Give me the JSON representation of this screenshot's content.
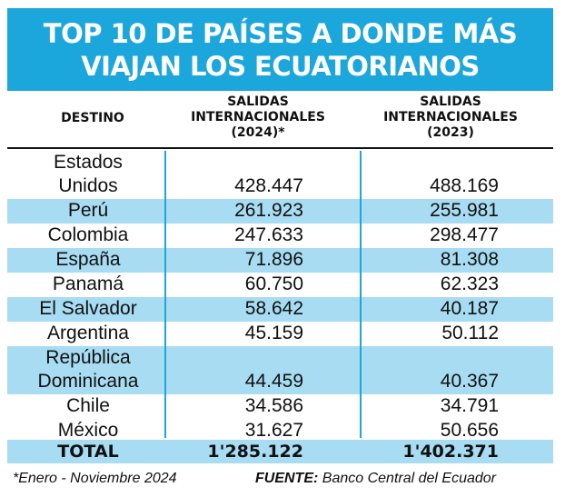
{
  "title": {
    "line1": "TOP 10 DE PAÍSES A DONDE MÁS",
    "line2": "VIAJAN LOS ECUATORIANOS"
  },
  "headers": {
    "destino": "DESTINO",
    "col2024": [
      "SALIDAS",
      "INTERNACIONALES",
      "(2024)*"
    ],
    "col2023": [
      "SALIDAS",
      "INTERNACIONALES",
      "(2023)"
    ]
  },
  "rows": [
    {
      "destino": [
        "Estados",
        "Unidos"
      ],
      "v2024": "428.447",
      "v2023": "488.169",
      "shaded": false
    },
    {
      "destino": [
        "Perú"
      ],
      "v2024": "261.923",
      "v2023": "255.981",
      "shaded": true
    },
    {
      "destino": [
        "Colombia"
      ],
      "v2024": "247.633",
      "v2023": "298.477",
      "shaded": false
    },
    {
      "destino": [
        "España"
      ],
      "v2024": "71.896",
      "v2023": "81.308",
      "shaded": true
    },
    {
      "destino": [
        "Panamá"
      ],
      "v2024": "60.750",
      "v2023": "62.323",
      "shaded": false
    },
    {
      "destino": [
        "El Salvador"
      ],
      "v2024": "58.642",
      "v2023": "40.187",
      "shaded": true
    },
    {
      "destino": [
        "Argentina"
      ],
      "v2024": "45.159",
      "v2023": "50.112",
      "shaded": false
    },
    {
      "destino": [
        "República",
        "Dominicana"
      ],
      "v2024": "44.459",
      "v2023": "40.367",
      "shaded": true
    },
    {
      "destino": [
        "Chile"
      ],
      "v2024": "34.586",
      "v2023": "34.791",
      "shaded": false
    },
    {
      "destino": [
        "México"
      ],
      "v2024": "31.627",
      "v2023": "50.656",
      "shaded": false
    }
  ],
  "total": {
    "label": "TOTAL",
    "v2024": "1'285.122",
    "v2023": "1'402.371"
  },
  "footnote": "*Enero - Noviembre 2024",
  "source": {
    "label": "FUENTE:",
    "text": " Banco Central del Ecuador"
  },
  "colors": {
    "accent": "#1ba6dc",
    "shade": "#a8dcf2"
  }
}
